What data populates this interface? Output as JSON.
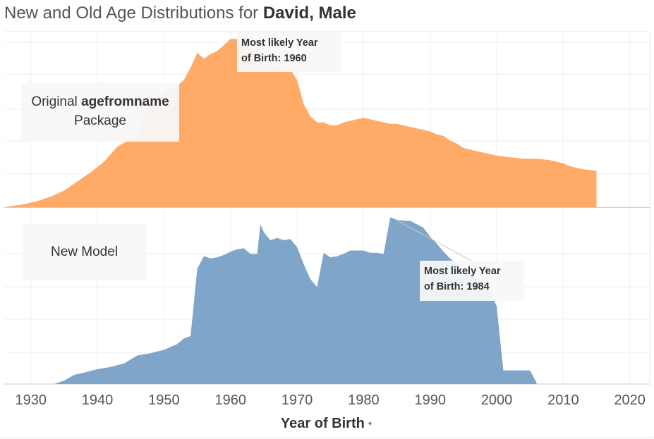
{
  "header": {
    "title_prefix": "New and Old Age Distributions for ",
    "title_name": "David, Male"
  },
  "panels": {
    "top": {
      "label_prefix": "Original ",
      "label_bold": "agefromname",
      "label_suffix": "Package",
      "callout_line1": "Most likely Year",
      "callout_line2": "of Birth: ",
      "callout_value": "1960"
    },
    "bottom": {
      "label": "New Model",
      "callout_line1": "Most likely Year",
      "callout_line2": "of Birth: ",
      "callout_value": "1984"
    }
  },
  "chart_data": [
    {
      "type": "area",
      "name": "Original agefromname Package",
      "color": "#FFAA66",
      "xlim": [
        1926,
        2023
      ],
      "xlabel": "Year of Birth",
      "x_ticks": [
        1930,
        1940,
        1950,
        1960,
        1970,
        1980,
        1990,
        2000,
        2010,
        2020
      ],
      "points": [
        [
          1926,
          0.0
        ],
        [
          1929,
          0.02
        ],
        [
          1931,
          0.04
        ],
        [
          1933,
          0.07
        ],
        [
          1935,
          0.11
        ],
        [
          1937,
          0.17
        ],
        [
          1939,
          0.23
        ],
        [
          1941,
          0.3
        ],
        [
          1943,
          0.4
        ],
        [
          1945,
          0.45
        ],
        [
          1946,
          0.48
        ],
        [
          1947,
          0.6
        ],
        [
          1948,
          0.68
        ],
        [
          1950,
          0.76
        ],
        [
          1952,
          0.8
        ],
        [
          1953,
          0.84
        ],
        [
          1954,
          0.92
        ],
        [
          1955,
          1.02
        ],
        [
          1956,
          0.98
        ],
        [
          1957,
          1.01
        ],
        [
          1958,
          1.03
        ],
        [
          1959,
          1.07
        ],
        [
          1960,
          1.11
        ],
        [
          1961,
          1.11
        ],
        [
          1962,
          1.08
        ],
        [
          1963,
          1.06
        ],
        [
          1964,
          0.99
        ],
        [
          1965,
          0.95
        ],
        [
          1967,
          0.92
        ],
        [
          1968,
          0.92
        ],
        [
          1969,
          0.91
        ],
        [
          1970,
          0.84
        ],
        [
          1971,
          0.68
        ],
        [
          1972,
          0.6
        ],
        [
          1973,
          0.56
        ],
        [
          1974,
          0.56
        ],
        [
          1975,
          0.54
        ],
        [
          1976,
          0.54
        ],
        [
          1977,
          0.56
        ],
        [
          1978,
          0.57
        ],
        [
          1979,
          0.58
        ],
        [
          1980,
          0.59
        ],
        [
          1981,
          0.58
        ],
        [
          1982,
          0.57
        ],
        [
          1983,
          0.56
        ],
        [
          1984,
          0.55
        ],
        [
          1985,
          0.55
        ],
        [
          1986,
          0.54
        ],
        [
          1987,
          0.53
        ],
        [
          1988,
          0.52
        ],
        [
          1989,
          0.51
        ],
        [
          1990,
          0.5
        ],
        [
          1991,
          0.48
        ],
        [
          1992,
          0.47
        ],
        [
          1993,
          0.44
        ],
        [
          1994,
          0.42
        ],
        [
          1995,
          0.39
        ],
        [
          1996,
          0.38
        ],
        [
          1997,
          0.37
        ],
        [
          1998,
          0.36
        ],
        [
          1999,
          0.35
        ],
        [
          2000,
          0.34
        ],
        [
          2002,
          0.33
        ],
        [
          2004,
          0.32
        ],
        [
          2006,
          0.32
        ],
        [
          2008,
          0.31
        ],
        [
          2009,
          0.3
        ],
        [
          2010,
          0.29
        ],
        [
          2011,
          0.27
        ],
        [
          2012,
          0.26
        ],
        [
          2013,
          0.25
        ],
        [
          2015,
          0.24
        ]
      ]
    },
    {
      "type": "area",
      "name": "New Model",
      "color": "#7FA6C9",
      "xlim": [
        1926,
        2023
      ],
      "xlabel": "Year of Birth",
      "x_ticks": [
        1930,
        1940,
        1950,
        1960,
        1970,
        1980,
        1990,
        2000,
        2010,
        2020
      ],
      "points": [
        [
          1933.5,
          0.0
        ],
        [
          1935,
          0.03
        ],
        [
          1936.5,
          0.08
        ],
        [
          1938,
          0.1
        ],
        [
          1940,
          0.13
        ],
        [
          1942,
          0.15
        ],
        [
          1944,
          0.18
        ],
        [
          1946,
          0.25
        ],
        [
          1948,
          0.27
        ],
        [
          1950,
          0.3
        ],
        [
          1952,
          0.35
        ],
        [
          1953,
          0.4
        ],
        [
          1954,
          0.42
        ],
        [
          1955,
          1.01
        ],
        [
          1956,
          1.12
        ],
        [
          1957,
          1.1
        ],
        [
          1958,
          1.11
        ],
        [
          1959,
          1.13
        ],
        [
          1960,
          1.16
        ],
        [
          1961,
          1.18
        ],
        [
          1962,
          1.19
        ],
        [
          1963,
          1.14
        ],
        [
          1964,
          1.14
        ],
        [
          1964.5,
          1.4
        ],
        [
          1965,
          1.33
        ],
        [
          1966,
          1.26
        ],
        [
          1967,
          1.28
        ],
        [
          1968,
          1.26
        ],
        [
          1969,
          1.27
        ],
        [
          1970,
          1.2
        ],
        [
          1971,
          1.05
        ],
        [
          1972,
          0.92
        ],
        [
          1973,
          0.85
        ],
        [
          1974,
          1.15
        ],
        [
          1975,
          1.11
        ],
        [
          1976,
          1.12
        ],
        [
          1977,
          1.14
        ],
        [
          1978,
          1.17
        ],
        [
          1979,
          1.17
        ],
        [
          1980,
          1.17
        ],
        [
          1981,
          1.15
        ],
        [
          1982,
          1.15
        ],
        [
          1983,
          1.14
        ],
        [
          1984,
          1.46
        ],
        [
          1985,
          1.44
        ],
        [
          1986,
          1.43
        ],
        [
          1987,
          1.43
        ],
        [
          1988,
          1.4
        ],
        [
          1989,
          1.37
        ],
        [
          1990,
          1.29
        ],
        [
          1991,
          1.23
        ],
        [
          1992,
          1.16
        ],
        [
          1993,
          1.1
        ],
        [
          1994,
          1.05
        ],
        [
          1995,
          1.0
        ],
        [
          1996,
          0.96
        ],
        [
          1997,
          0.92
        ],
        [
          1998,
          0.88
        ],
        [
          1999,
          0.82
        ],
        [
          2000,
          0.68
        ],
        [
          2001,
          0.12
        ],
        [
          2002,
          0.12
        ],
        [
          2003,
          0.12
        ],
        [
          2004,
          0.12
        ],
        [
          2005,
          0.12
        ],
        [
          2006,
          0.01
        ]
      ]
    }
  ]
}
